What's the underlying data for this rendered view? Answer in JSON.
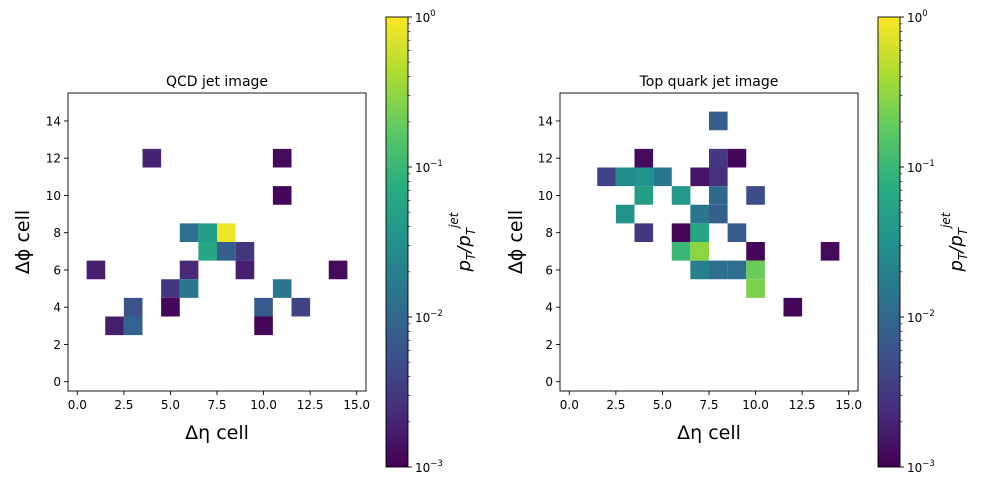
{
  "chart_data": [
    {
      "type": "heatmap",
      "title": "QCD jet image",
      "xlabel": "Δη cell",
      "ylabel": "Δϕ cell",
      "xlim": [
        -0.5,
        15.5
      ],
      "ylim": [
        -0.5,
        15.5
      ],
      "xticks": [
        0.0,
        2.5,
        5.0,
        7.5,
        10.0,
        12.5,
        15.0
      ],
      "xtick_labels": [
        "0.0",
        "2.5",
        "5.0",
        "7.5",
        "10.0",
        "12.5",
        "15.0"
      ],
      "yticks": [
        0,
        2,
        4,
        6,
        8,
        10,
        12,
        14
      ],
      "ytick_labels": [
        "0",
        "2",
        "4",
        "6",
        "8",
        "10",
        "12",
        "14"
      ],
      "colorscale": "viridis",
      "log_color_scale": true,
      "color_range": [
        0.001,
        1
      ],
      "colorbar": {
        "label": "p_T/p_T^jet",
        "ticks": [
          0.001,
          0.01,
          0.1,
          1
        ],
        "tick_labels": [
          [
            "10",
            "−3"
          ],
          [
            "10",
            "−2"
          ],
          [
            "10",
            "−1"
          ],
          [
            "10",
            "0"
          ]
        ]
      },
      "cells": [
        {
          "x": 4,
          "y": 12,
          "value": 0.002
        },
        {
          "x": 11,
          "y": 12,
          "value": 0.0012
        },
        {
          "x": 11,
          "y": 10,
          "value": 0.0011
        },
        {
          "x": 6,
          "y": 8,
          "value": 0.012
        },
        {
          "x": 7,
          "y": 8,
          "value": 0.045
        },
        {
          "x": 8,
          "y": 8,
          "value": 0.85
        },
        {
          "x": 7,
          "y": 7,
          "value": 0.06
        },
        {
          "x": 8,
          "y": 7,
          "value": 0.008
        },
        {
          "x": 9,
          "y": 7,
          "value": 0.003
        },
        {
          "x": 1,
          "y": 6,
          "value": 0.0018
        },
        {
          "x": 6,
          "y": 6,
          "value": 0.0022
        },
        {
          "x": 9,
          "y": 6,
          "value": 0.0018
        },
        {
          "x": 14,
          "y": 6,
          "value": 0.0012
        },
        {
          "x": 5,
          "y": 5,
          "value": 0.003
        },
        {
          "x": 6,
          "y": 5,
          "value": 0.015
        },
        {
          "x": 11,
          "y": 5,
          "value": 0.015
        },
        {
          "x": 3,
          "y": 4,
          "value": 0.006
        },
        {
          "x": 5,
          "y": 4,
          "value": 0.0011
        },
        {
          "x": 10,
          "y": 4,
          "value": 0.007
        },
        {
          "x": 12,
          "y": 4,
          "value": 0.004
        },
        {
          "x": 2,
          "y": 3,
          "value": 0.0018
        },
        {
          "x": 3,
          "y": 3,
          "value": 0.009
        },
        {
          "x": 10,
          "y": 3,
          "value": 0.0011
        }
      ]
    },
    {
      "type": "heatmap",
      "title": "Top quark jet image",
      "xlabel": "Δη cell",
      "ylabel": "Δϕ cell",
      "xlim": [
        -0.5,
        15.5
      ],
      "ylim": [
        -0.5,
        15.5
      ],
      "xticks": [
        0.0,
        2.5,
        5.0,
        7.5,
        10.0,
        12.5,
        15.0
      ],
      "xtick_labels": [
        "0.0",
        "2.5",
        "5.0",
        "7.5",
        "10.0",
        "12.5",
        "15.0"
      ],
      "yticks": [
        0,
        2,
        4,
        6,
        8,
        10,
        12,
        14
      ],
      "ytick_labels": [
        "0",
        "2",
        "4",
        "6",
        "8",
        "10",
        "12",
        "14"
      ],
      "colorscale": "viridis",
      "log_color_scale": true,
      "color_range": [
        0.001,
        1
      ],
      "colorbar": {
        "label": "p_T/p_T^jet",
        "ticks": [
          0.001,
          0.01,
          0.1,
          1
        ],
        "tick_labels": [
          [
            "10",
            "−3"
          ],
          [
            "10",
            "−2"
          ],
          [
            "10",
            "−1"
          ],
          [
            "10",
            "0"
          ]
        ]
      },
      "cells": [
        {
          "x": 8,
          "y": 14,
          "value": 0.008
        },
        {
          "x": 4,
          "y": 12,
          "value": 0.0012
        },
        {
          "x": 8,
          "y": 12,
          "value": 0.003
        },
        {
          "x": 9,
          "y": 12,
          "value": 0.0011
        },
        {
          "x": 2,
          "y": 11,
          "value": 0.004
        },
        {
          "x": 3,
          "y": 11,
          "value": 0.03
        },
        {
          "x": 4,
          "y": 11,
          "value": 0.035
        },
        {
          "x": 5,
          "y": 11,
          "value": 0.015
        },
        {
          "x": 7,
          "y": 11,
          "value": 0.0015
        },
        {
          "x": 8,
          "y": 11,
          "value": 0.0025
        },
        {
          "x": 4,
          "y": 10,
          "value": 0.045
        },
        {
          "x": 6,
          "y": 10,
          "value": 0.04
        },
        {
          "x": 8,
          "y": 10,
          "value": 0.01
        },
        {
          "x": 10,
          "y": 10,
          "value": 0.005
        },
        {
          "x": 3,
          "y": 9,
          "value": 0.035
        },
        {
          "x": 7,
          "y": 9,
          "value": 0.015
        },
        {
          "x": 8,
          "y": 9,
          "value": 0.008
        },
        {
          "x": 4,
          "y": 8,
          "value": 0.003
        },
        {
          "x": 6,
          "y": 8,
          "value": 0.0011
        },
        {
          "x": 7,
          "y": 8,
          "value": 0.06
        },
        {
          "x": 9,
          "y": 8,
          "value": 0.007
        },
        {
          "x": 6,
          "y": 7,
          "value": 0.1
        },
        {
          "x": 7,
          "y": 7,
          "value": 0.3
        },
        {
          "x": 10,
          "y": 7,
          "value": 0.0011
        },
        {
          "x": 14,
          "y": 7,
          "value": 0.0012
        },
        {
          "x": 7,
          "y": 6,
          "value": 0.02
        },
        {
          "x": 8,
          "y": 6,
          "value": 0.012
        },
        {
          "x": 9,
          "y": 6,
          "value": 0.012
        },
        {
          "x": 10,
          "y": 6,
          "value": 0.2
        },
        {
          "x": 10,
          "y": 5,
          "value": 0.25
        },
        {
          "x": 12,
          "y": 4,
          "value": 0.0011
        }
      ]
    }
  ]
}
